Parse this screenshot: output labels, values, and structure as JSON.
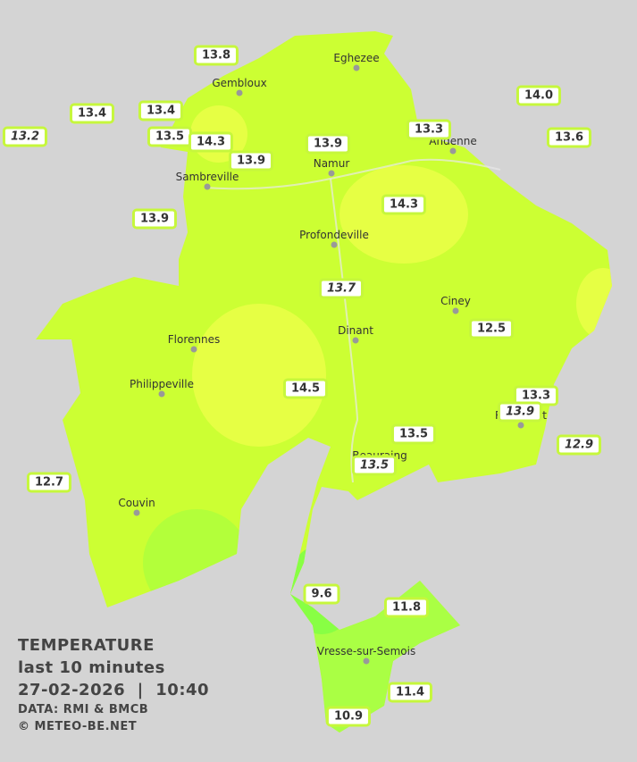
{
  "cities": [
    "Eghezee",
    "Gembloux",
    "Andenne",
    "Namur",
    "Sambreville",
    "Profondeville",
    "Ciney",
    "Dinant",
    "Florennes",
    "Philippeville",
    "Rochefort",
    "Beauraing",
    "Couvin",
    "Vresse-sur-Semois"
  ],
  "stations": [
    {
      "label": "13.8",
      "italic": false
    },
    {
      "label": "13.4",
      "italic": false
    },
    {
      "label": "13.4",
      "italic": false
    },
    {
      "label": "13.2",
      "italic": true
    },
    {
      "label": "13.5",
      "italic": false
    },
    {
      "label": "14.3",
      "italic": false
    },
    {
      "label": "13.9",
      "italic": false
    },
    {
      "label": "13.9",
      "italic": false
    },
    {
      "label": "13.3",
      "italic": false
    },
    {
      "label": "14.0",
      "italic": false
    },
    {
      "label": "13.6",
      "italic": false
    },
    {
      "label": "13.9",
      "italic": false
    },
    {
      "label": "14.3",
      "italic": false
    },
    {
      "label": "13.7",
      "italic": true
    },
    {
      "label": "12.5",
      "italic": false
    },
    {
      "label": "14.5",
      "italic": false
    },
    {
      "label": "13.3",
      "italic": false
    },
    {
      "label": "13.9",
      "italic": true
    },
    {
      "label": "13.5",
      "italic": false
    },
    {
      "label": "13.5",
      "italic": true
    },
    {
      "label": "12.9",
      "italic": true
    },
    {
      "label": "12.7",
      "italic": false
    },
    {
      "label": "9.6",
      "italic": false
    },
    {
      "label": "11.8",
      "italic": false
    },
    {
      "label": "11.4",
      "italic": false
    },
    {
      "label": "10.9",
      "italic": false
    }
  ],
  "legend": {
    "title": "TEMPERATURE",
    "period": "last 10 minutes",
    "datetime": "27-02-2026  |  10:40",
    "source": "DATA: RMI & BMCB",
    "credit": "© METEO-BE.NET"
  }
}
